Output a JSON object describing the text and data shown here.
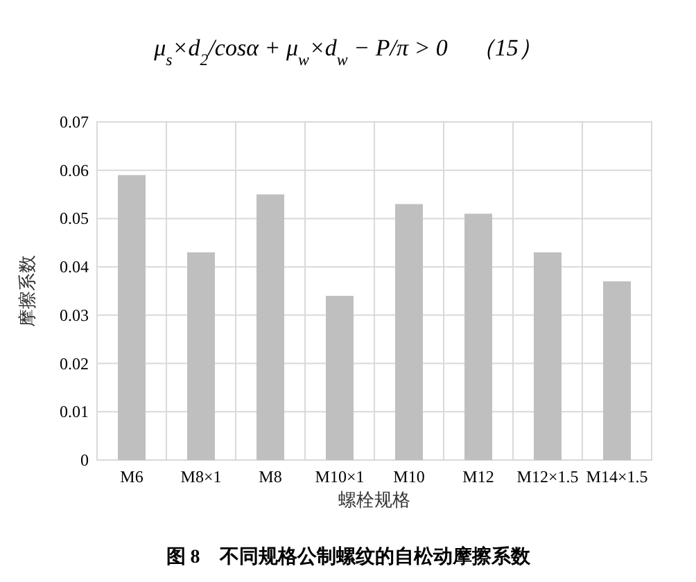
{
  "chart_data": {
    "type": "bar",
    "title": "图 8　不同规格公制螺纹的自松动摩擦系数",
    "annotations": [
      "μ$_{s}$×d$_{2}$/cosα + μ$_{w}$×d$_{w}$ − P/π > 0　（15）"
    ],
    "xlabel": "螺栓规格",
    "ylabel": "摩擦系数",
    "categories": [
      "M6",
      "M8×1",
      "M8",
      "M10×1",
      "M10",
      "M12",
      "M12×1.5",
      "M14×1.5"
    ],
    "values": [
      0.059,
      0.043,
      0.055,
      0.034,
      0.053,
      0.051,
      0.043,
      0.037
    ],
    "color": "#bfbfbf",
    "ylim": [
      0,
      0.07
    ],
    "yticks": [
      0,
      0.01,
      0.02,
      0.03,
      0.04,
      0.05,
      0.06,
      0.07
    ],
    "grid": true
  }
}
